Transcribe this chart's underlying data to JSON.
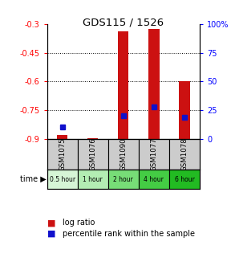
{
  "title": "GDS115 / 1526",
  "samples": [
    "GSM1075",
    "GSM1076",
    "GSM1090",
    "GSM1077",
    "GSM1078"
  ],
  "time_labels": [
    "0.5 hour",
    "1 hour",
    "2 hour",
    "4 hour",
    "6 hour"
  ],
  "time_colors": [
    "#d6f5d6",
    "#b3edb3",
    "#77dd77",
    "#44cc44",
    "#22bb22"
  ],
  "sample_bg": "#cccccc",
  "log_ratio_tops": [
    -0.88,
    -0.895,
    -0.335,
    -0.325,
    -0.6
  ],
  "bar_bottom": -0.9,
  "percentile_values": [
    10,
    null,
    20,
    28,
    19
  ],
  "ylim_left": [
    -0.9,
    -0.3
  ],
  "yticks_left": [
    -0.9,
    -0.75,
    -0.6,
    -0.45,
    -0.3
  ],
  "yticks_right": [
    0,
    25,
    50,
    75,
    100
  ],
  "bar_color": "#cc1111",
  "percentile_color": "#1111cc",
  "bar_width": 0.35,
  "legend_lr_label": "log ratio",
  "legend_pr_label": "percentile rank within the sample",
  "bg_color": "#ffffff"
}
